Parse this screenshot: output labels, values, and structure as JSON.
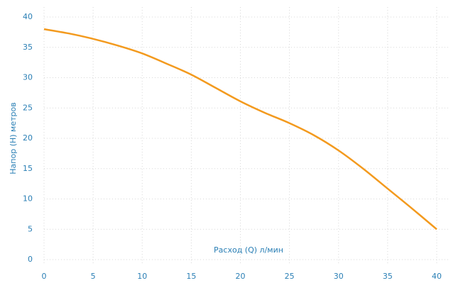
{
  "chart_data": {
    "type": "line",
    "x_label": "Расход (Q) л/мин",
    "y_label": "Напор (H) метров",
    "x": [
      0,
      2.5,
      5,
      7.5,
      10,
      12.5,
      15,
      17.5,
      20,
      22.5,
      25,
      27.5,
      30,
      32.5,
      35,
      37.5,
      40
    ],
    "series": [
      {
        "color": "#f39a1e",
        "values": [
          38,
          37.3,
          36.4,
          35.3,
          34,
          32.3,
          30.5,
          28.3,
          26.1,
          24.2,
          22.5,
          20.5,
          18,
          15,
          11.7,
          8.4,
          5
        ]
      }
    ],
    "xlim": [
      0,
      40
    ],
    "xticks": [
      0,
      5,
      10,
      15,
      20,
      25,
      30,
      35,
      40
    ],
    "ylim": [
      0,
      40
    ],
    "yticks": [
      0,
      5,
      10,
      15,
      20,
      25,
      30,
      35,
      40
    ],
    "grid": true
  }
}
